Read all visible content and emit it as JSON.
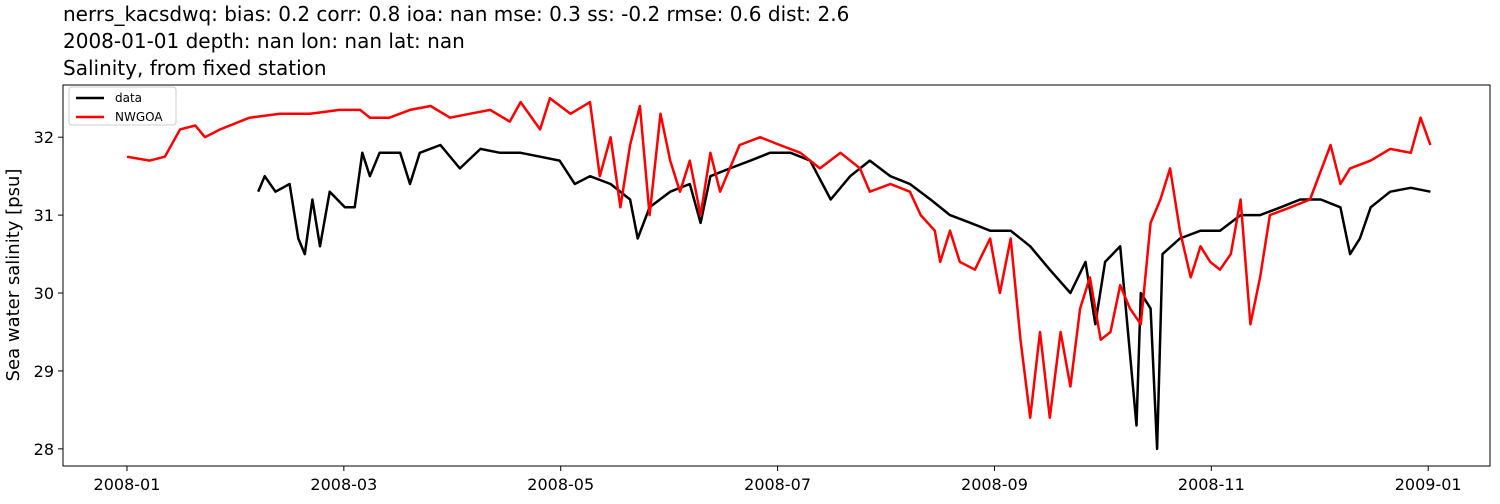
{
  "chart_data": {
    "type": "line",
    "title": "nerrs_kacsdwq: bias: 0.2  corr: 0.8  ioa: nan  mse: 0.3  ss: -0.2  rmse: 0.6  dist: 2.6",
    "subtitle": "2008-01-01 depth: nan lon: nan lat: nan",
    "subtitle2": "Salinity, from fixed station",
    "ylabel": "Sea water salinity [psu]",
    "xlim": [
      -0.59,
      12.57
    ],
    "ylim": [
      27.78,
      32.67
    ],
    "xticks": [
      {
        "value": 0,
        "label": "2008-01"
      },
      {
        "value": 2,
        "label": "2008-03"
      },
      {
        "value": 4,
        "label": "2008-05"
      },
      {
        "value": 6,
        "label": "2008-07"
      },
      {
        "value": 8,
        "label": "2008-09"
      },
      {
        "value": 10,
        "label": "2008-11"
      },
      {
        "value": 12,
        "label": "2009-01"
      }
    ],
    "yticks": [
      28,
      29,
      30,
      31,
      32
    ],
    "grid": false,
    "legend": "upper-left",
    "series": [
      {
        "name": "data",
        "color": "#000000",
        "x": [
          1.21,
          1.27,
          1.37,
          1.5,
          1.58,
          1.64,
          1.71,
          1.78,
          1.87,
          2.01,
          2.1,
          2.17,
          2.24,
          2.33,
          2.52,
          2.61,
          2.7,
          2.89,
          3.07,
          3.26,
          3.44,
          3.63,
          3.81,
          3.99,
          4.13,
          4.27,
          4.46,
          4.64,
          4.71,
          4.82,
          5.01,
          5.19,
          5.29,
          5.38,
          5.56,
          5.75,
          5.93,
          6.12,
          6.3,
          6.49,
          6.67,
          6.85,
          7.04,
          7.22,
          7.41,
          7.59,
          7.78,
          7.96,
          8.15,
          8.33,
          8.51,
          8.7,
          8.84,
          8.93,
          9.02,
          9.16,
          9.31,
          9.35,
          9.44,
          9.5,
          9.55,
          9.71,
          9.9,
          10.08,
          10.27,
          10.45,
          10.64,
          10.82,
          11.01,
          11.19,
          11.28,
          11.37,
          11.47,
          11.65,
          11.84,
          12.02
        ],
        "values": [
          31.3,
          31.5,
          31.3,
          31.4,
          30.7,
          30.5,
          31.2,
          30.6,
          31.3,
          31.1,
          31.1,
          31.8,
          31.5,
          31.8,
          31.8,
          31.4,
          31.8,
          31.9,
          31.6,
          31.85,
          31.8,
          31.8,
          31.75,
          31.7,
          31.4,
          31.5,
          31.4,
          31.2,
          30.7,
          31.1,
          31.3,
          31.4,
          30.9,
          31.5,
          31.6,
          31.7,
          31.8,
          31.8,
          31.7,
          31.2,
          31.5,
          31.7,
          31.5,
          31.4,
          31.2,
          31.0,
          30.9,
          30.8,
          30.8,
          30.6,
          30.3,
          30.0,
          30.4,
          29.6,
          30.4,
          30.6,
          28.3,
          30.0,
          29.8,
          28.0,
          30.5,
          30.7,
          30.8,
          30.8,
          31.0,
          31.0,
          31.1,
          31.2,
          31.2,
          31.1,
          30.5,
          30.7,
          31.1,
          31.3,
          31.35,
          31.3
        ]
      },
      {
        "name": "NWGOA",
        "color": "#ff0000",
        "x": [
          0,
          0.21,
          0.35,
          0.49,
          0.63,
          0.72,
          0.86,
          1.13,
          1.41,
          1.69,
          1.96,
          2.15,
          2.24,
          2.42,
          2.61,
          2.8,
          2.98,
          3.16,
          3.35,
          3.53,
          3.63,
          3.81,
          3.9,
          4.09,
          4.27,
          4.36,
          4.46,
          4.55,
          4.64,
          4.73,
          4.82,
          4.92,
          5.01,
          5.1,
          5.19,
          5.29,
          5.38,
          5.47,
          5.65,
          5.84,
          6.02,
          6.21,
          6.39,
          6.58,
          6.76,
          6.85,
          7.04,
          7.22,
          7.32,
          7.45,
          7.5,
          7.59,
          7.68,
          7.82,
          7.96,
          8.05,
          8.15,
          8.24,
          8.33,
          8.42,
          8.51,
          8.61,
          8.7,
          8.79,
          8.88,
          8.98,
          9.07,
          9.16,
          9.25,
          9.35,
          9.44,
          9.53,
          9.62,
          9.71,
          9.81,
          9.9,
          9.99,
          10.08,
          10.18,
          10.27,
          10.31,
          10.36,
          10.45,
          10.54,
          10.73,
          10.91,
          11.1,
          11.19,
          11.28,
          11.47,
          11.65,
          11.84,
          11.93,
          12.02
        ],
        "values": [
          31.75,
          31.7,
          31.75,
          32.1,
          32.15,
          32.0,
          32.1,
          32.25,
          32.3,
          32.3,
          32.35,
          32.35,
          32.25,
          32.25,
          32.35,
          32.4,
          32.25,
          32.3,
          32.35,
          32.2,
          32.45,
          32.1,
          32.5,
          32.3,
          32.45,
          31.5,
          32.0,
          31.1,
          31.9,
          32.4,
          31.0,
          32.3,
          31.7,
          31.3,
          31.7,
          31.0,
          31.8,
          31.3,
          31.9,
          32.0,
          31.9,
          31.8,
          31.6,
          31.8,
          31.6,
          31.3,
          31.4,
          31.3,
          31.0,
          30.8,
          30.4,
          30.8,
          30.4,
          30.3,
          30.7,
          30.0,
          30.7,
          29.4,
          28.4,
          29.5,
          28.4,
          29.5,
          28.8,
          29.8,
          30.2,
          29.4,
          29.5,
          30.1,
          29.8,
          29.6,
          30.9,
          31.2,
          31.6,
          30.8,
          30.2,
          30.6,
          30.4,
          30.3,
          30.5,
          31.2,
          30.5,
          29.6,
          30.2,
          31.0,
          31.1,
          31.2,
          31.9,
          31.4,
          31.6,
          31.7,
          31.85,
          31.8,
          32.25,
          31.9
        ]
      }
    ]
  }
}
